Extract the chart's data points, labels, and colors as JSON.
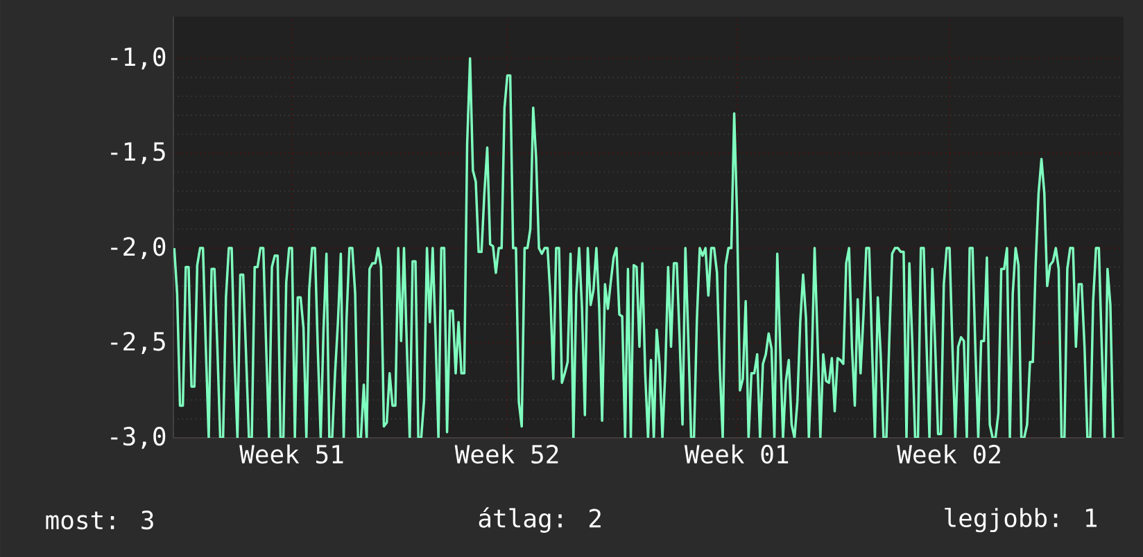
{
  "chart_data": {
    "type": "line",
    "categories": [
      null,
      null,
      null,
      null,
      null,
      null,
      null,
      null,
      null,
      null,
      null,
      null,
      null,
      null,
      null,
      null,
      null,
      null,
      null,
      null,
      null,
      null,
      null,
      null,
      null,
      null,
      null,
      null,
      null,
      null,
      null,
      null,
      null,
      null,
      null,
      null,
      null,
      null,
      null,
      null,
      null,
      "Week 51",
      null,
      null,
      null,
      null,
      null,
      null,
      null,
      null,
      null,
      null,
      null,
      null,
      null,
      null,
      null,
      null,
      null,
      null,
      null,
      null,
      null,
      null,
      null,
      null,
      null,
      null,
      null,
      null,
      null,
      null,
      null,
      null,
      null,
      null,
      null,
      null,
      null,
      null,
      null,
      null,
      null,
      null,
      null,
      null,
      null,
      null,
      null,
      null,
      null,
      null,
      null,
      null,
      null,
      null,
      null,
      null,
      null,
      null,
      null,
      null,
      null,
      null,
      null,
      null,
      null,
      null,
      null,
      null,
      null,
      null,
      null,
      null,
      null,
      null,
      "Week 52",
      null,
      null,
      null,
      null,
      null,
      null,
      null,
      null,
      null,
      null,
      null,
      null,
      null,
      null,
      null,
      null,
      null,
      null,
      null,
      null,
      null,
      null,
      null,
      null,
      null,
      null,
      null,
      null,
      null,
      null,
      null,
      null,
      null,
      null,
      null,
      null,
      null,
      null,
      null,
      null,
      null,
      null,
      null,
      null,
      null,
      null,
      null,
      null,
      null,
      null,
      null,
      null,
      null,
      null,
      null,
      null,
      null,
      null,
      null,
      null,
      null,
      null,
      null,
      null,
      null,
      null,
      null,
      null,
      null,
      null,
      null,
      null,
      null,
      null,
      null,
      null,
      null,
      null,
      null,
      "Week 01",
      null,
      null,
      null,
      null,
      null,
      null,
      null,
      null,
      null,
      null,
      null,
      null,
      null,
      null,
      null,
      null,
      null,
      null,
      null,
      null,
      null,
      null,
      null,
      null,
      null,
      null,
      null,
      null,
      null,
      null,
      null,
      null,
      null,
      null,
      null,
      null,
      null,
      null,
      null,
      null,
      null,
      null,
      null,
      null,
      null,
      null,
      null,
      null,
      null,
      null,
      null,
      null,
      null,
      null,
      null,
      null,
      null,
      null,
      null,
      null,
      null,
      null,
      null,
      null,
      null,
      null,
      null,
      null,
      null,
      null,
      null,
      null,
      null,
      "Week 02",
      null,
      null,
      null,
      null,
      null,
      null,
      null,
      null,
      null,
      null,
      null,
      null,
      null,
      null,
      null,
      null,
      null,
      null,
      null,
      null,
      null,
      null,
      null,
      null,
      null,
      null,
      null,
      null,
      null,
      null,
      null,
      null,
      null,
      null,
      null,
      null,
      null,
      null,
      null,
      null,
      null,
      null,
      null,
      null,
      null,
      null,
      null,
      null,
      null,
      null,
      null,
      null,
      null,
      null,
      null,
      null,
      null
    ],
    "series": [
      {
        "color": "#7fffbf",
        "values": [
          -2.0,
          -2.24,
          -2.83,
          -2.83,
          -2.1,
          -2.1,
          -2.73,
          -2.73,
          -2.09,
          -2.0,
          -2.0,
          -2.53,
          -3.0,
          -2.11,
          -2.11,
          -2.52,
          -3.0,
          -3.0,
          -2.26,
          -2.0,
          -2.0,
          -2.59,
          -3.0,
          -2.14,
          -2.14,
          -2.56,
          -3.0,
          -3.0,
          -2.1,
          -2.1,
          -2.0,
          -2.0,
          -2.52,
          -3.0,
          -2.1,
          -2.04,
          -2.04,
          -3.0,
          -3.0,
          -2.18,
          -2.0,
          -2.0,
          -3.0,
          -2.26,
          -2.26,
          -2.42,
          -3.0,
          -2.22,
          -2.0,
          -2.0,
          -2.54,
          -3.0,
          -2.42,
          -2.03,
          -3.0,
          -3.0,
          -2.66,
          -2.39,
          -2.03,
          -3.0,
          -2.37,
          -2.0,
          -2.0,
          -2.24,
          -3.0,
          -3.0,
          -2.72,
          -3.0,
          -2.11,
          -2.08,
          -2.08,
          -2.0,
          -2.1,
          -2.94,
          -2.92,
          -2.66,
          -2.83,
          -2.83,
          -2.0,
          -2.49,
          -2.0,
          -2.52,
          -3.0,
          -2.07,
          -2.07,
          -3.0,
          -3.0,
          -2.8,
          -2.0,
          -2.39,
          -2.0,
          -2.47,
          -3.0,
          -2.0,
          -2.0,
          -2.97,
          -2.33,
          -2.33,
          -2.66,
          -2.39,
          -2.66,
          -2.66,
          -1.45,
          -1.0,
          -1.59,
          -1.65,
          -2.02,
          -2.02,
          -1.71,
          -1.47,
          -1.98,
          -1.99,
          -2.13,
          -2.0,
          -2.0,
          -1.26,
          -1.09,
          -1.09,
          -2.0,
          -2.0,
          -2.81,
          -2.94,
          -2.0,
          -2.0,
          -1.9,
          -1.26,
          -1.52,
          -2.0,
          -2.03,
          -2.0,
          -2.0,
          -2.26,
          -2.69,
          -2.0,
          -2.0,
          -2.71,
          -2.66,
          -2.6,
          -2.03,
          -3.0,
          -2.24,
          -2.0,
          -2.32,
          -2.88,
          -2.0,
          -2.3,
          -2.22,
          -2.0,
          -2.32,
          -2.91,
          -2.19,
          -2.32,
          -2.18,
          -2.05,
          -2.0,
          -2.35,
          -2.36,
          -3.0,
          -2.11,
          -3.0,
          -2.09,
          -2.1,
          -2.52,
          -2.08,
          -2.66,
          -3.0,
          -2.59,
          -3.0,
          -2.43,
          -2.61,
          -3.0,
          -2.65,
          -2.1,
          -2.52,
          -2.08,
          -2.08,
          -2.48,
          -2.93,
          -2.0,
          -2.47,
          -3.0,
          -3.0,
          -2.38,
          -2.0,
          -2.04,
          -2.0,
          -2.25,
          -2.0,
          -2.0,
          -2.13,
          -2.64,
          -3.0,
          -2.09,
          -2.0,
          -2.0,
          -1.29,
          -1.83,
          -2.75,
          -2.69,
          -2.28,
          -3.0,
          -2.66,
          -2.66,
          -2.56,
          -3.0,
          -2.61,
          -2.56,
          -2.45,
          -2.53,
          -3.0,
          -2.03,
          -2.52,
          -3.0,
          -2.7,
          -2.59,
          -2.93,
          -3.0,
          -2.81,
          -2.39,
          -2.14,
          -2.37,
          -3.0,
          -2.61,
          -2.0,
          -2.47,
          -3.0,
          -2.56,
          -2.7,
          -2.71,
          -2.58,
          -2.86,
          -2.58,
          -2.59,
          -2.61,
          -2.08,
          -2.0,
          -2.52,
          -2.83,
          -2.27,
          -2.66,
          -2.36,
          -2.0,
          -2.0,
          -2.52,
          -3.0,
          -2.26,
          -2.56,
          -3.0,
          -3.0,
          -2.49,
          -2.03,
          -2.0,
          -2.0,
          -2.02,
          -2.02,
          -3.0,
          -2.08,
          -2.49,
          -3.0,
          -3.0,
          -2.0,
          -2.0,
          -2.52,
          -3.0,
          -2.11,
          -2.52,
          -2.98,
          -2.98,
          -2.19,
          -2.0,
          -2.0,
          -2.52,
          -3.0,
          -2.52,
          -2.47,
          -2.49,
          -3.0,
          -2.0,
          -2.0,
          -2.54,
          -3.0,
          -2.49,
          -2.49,
          -2.05,
          -2.93,
          -3.0,
          -3.0,
          -2.87,
          -2.11,
          -2.11,
          -2.0,
          -3.0,
          -2.24,
          -2.0,
          -2.09,
          -3.0,
          -3.0,
          -2.93,
          -2.6,
          -2.6,
          -2.08,
          -1.71,
          -1.53,
          -1.71,
          -2.2,
          -2.09,
          -2.07,
          -2.0,
          -2.11,
          -3.0,
          -3.0,
          -2.11,
          -2.0,
          -2.0,
          -2.52,
          -2.19,
          -2.19,
          -2.52,
          -3.0,
          -3.0,
          -2.28,
          -2.0,
          -2.0,
          -2.52,
          -3.0,
          -2.11,
          -2.3,
          -3.0
        ]
      }
    ],
    "ylim": [
      -3,
      -0.78
    ],
    "yticks": [
      {
        "value": -3,
        "label": "-3,0"
      },
      {
        "value": -2.5,
        "label": "-2,5"
      },
      {
        "value": -2,
        "label": "-2,0"
      },
      {
        "value": -1.5,
        "label": "-1,5"
      },
      {
        "value": -1,
        "label": "-1,0"
      }
    ],
    "grid": true,
    "marker": "none",
    "line_style": "solid",
    "annotations": [
      "most: 3",
      "átlag: 2",
      "legjobb: 1"
    ]
  }
}
